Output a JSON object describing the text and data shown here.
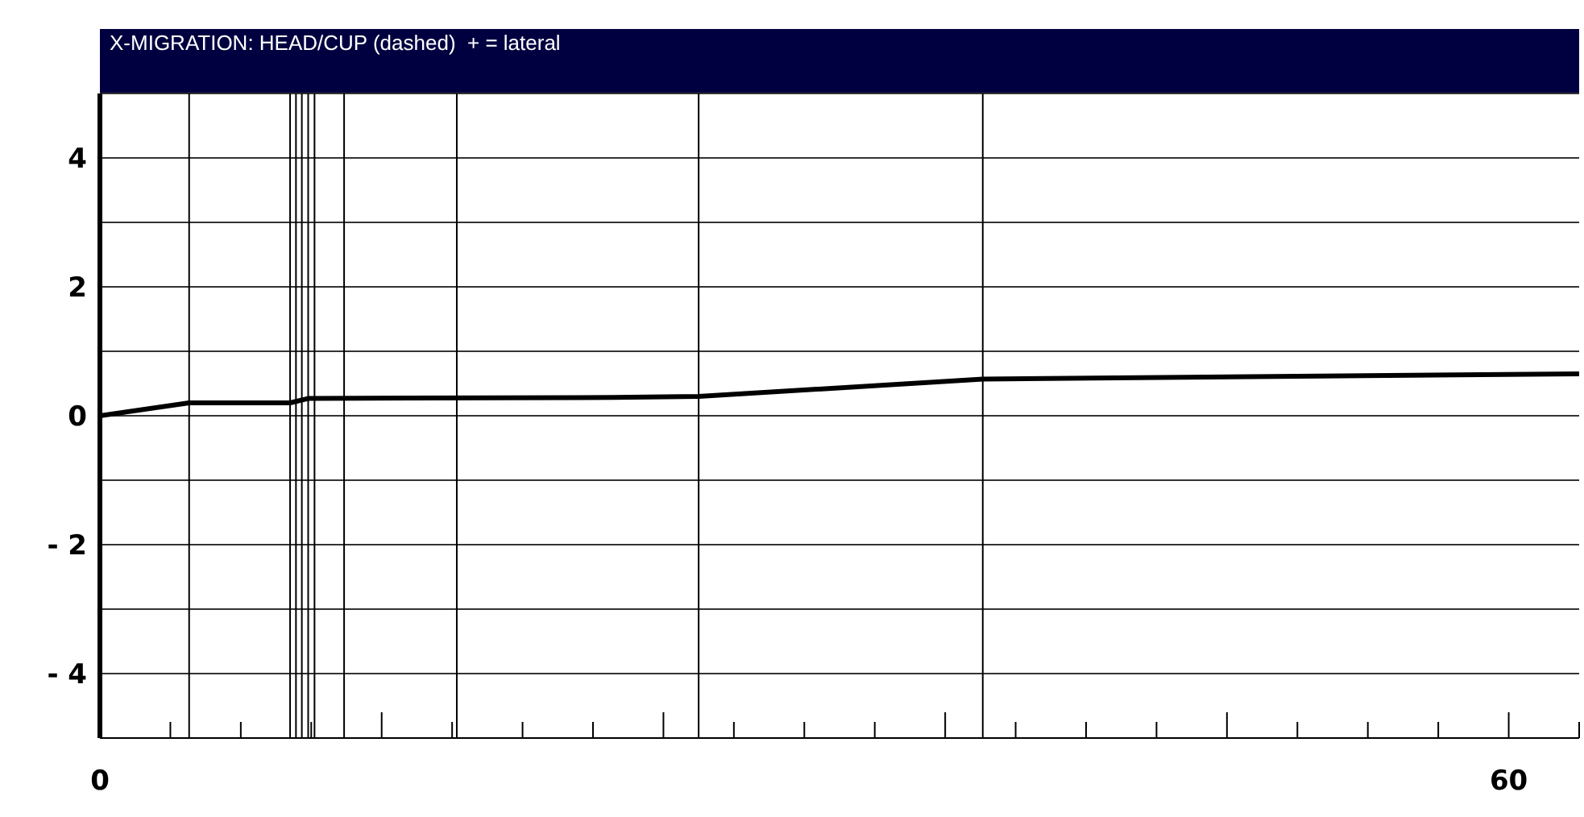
{
  "chart_data": {
    "type": "line",
    "title": "X-MIGRATION: HEAD/CUP (dashed)  + = lateral",
    "x": [
      0,
      3.8,
      8.1,
      8.9,
      20.5,
      25.5,
      37.6,
      63
    ],
    "series": [
      {
        "color": "#000000",
        "values": [
          0,
          0.2,
          0.2,
          0.27,
          0.28,
          0.3,
          0.57,
          0.65
        ]
      }
    ],
    "xlim": [
      0,
      63
    ],
    "xticks": [
      0,
      {
        "value": 3,
        "label": null
      },
      {
        "value": 6,
        "label": null
      },
      {
        "value": 9,
        "label": null
      },
      {
        "value": 12,
        "label": null
      },
      {
        "value": 15,
        "label": null
      },
      {
        "value": 18,
        "label": null
      },
      {
        "value": 21,
        "label": null
      },
      {
        "value": 24,
        "label": null
      },
      {
        "value": 27,
        "label": null
      },
      {
        "value": 30,
        "label": null
      },
      {
        "value": 33,
        "label": null
      },
      {
        "value": 36,
        "label": null
      },
      {
        "value": 39,
        "label": null
      },
      {
        "value": 42,
        "label": null
      },
      {
        "value": 45,
        "label": null
      },
      {
        "value": 48,
        "label": null
      },
      {
        "value": 51,
        "label": null
      },
      {
        "value": 54,
        "label": null
      },
      {
        "value": 57,
        "label": null
      },
      60,
      {
        "value": 63,
        "label": null
      }
    ],
    "ylim": [
      -5,
      5
    ],
    "yticks": [
      {
        "value": -5,
        "label": null
      },
      {
        "value": -4,
        "label": "- 4"
      },
      {
        "value": -3,
        "label": null
      },
      {
        "value": -2,
        "label": "- 2"
      },
      {
        "value": -1,
        "label": null
      },
      0,
      {
        "value": 1,
        "label": null
      },
      2,
      {
        "value": 3,
        "label": null
      },
      4,
      {
        "value": 5,
        "label": null
      }
    ],
    "grid": "y",
    "marker": "none",
    "line_style": "solid",
    "ref_lines": [
      {
        "axis": "x",
        "value": 3.8
      },
      {
        "axis": "x",
        "value": 8.1
      },
      {
        "axis": "x",
        "value": 8.35
      },
      {
        "axis": "x",
        "value": 8.6
      },
      {
        "axis": "x",
        "value": 8.87
      },
      {
        "axis": "x",
        "value": 9.14
      },
      {
        "axis": "x",
        "value": 10.4
      },
      {
        "axis": "x",
        "value": 15.2
      },
      {
        "axis": "x",
        "value": 25.5
      },
      {
        "axis": "x",
        "value": 37.6
      }
    ]
  }
}
